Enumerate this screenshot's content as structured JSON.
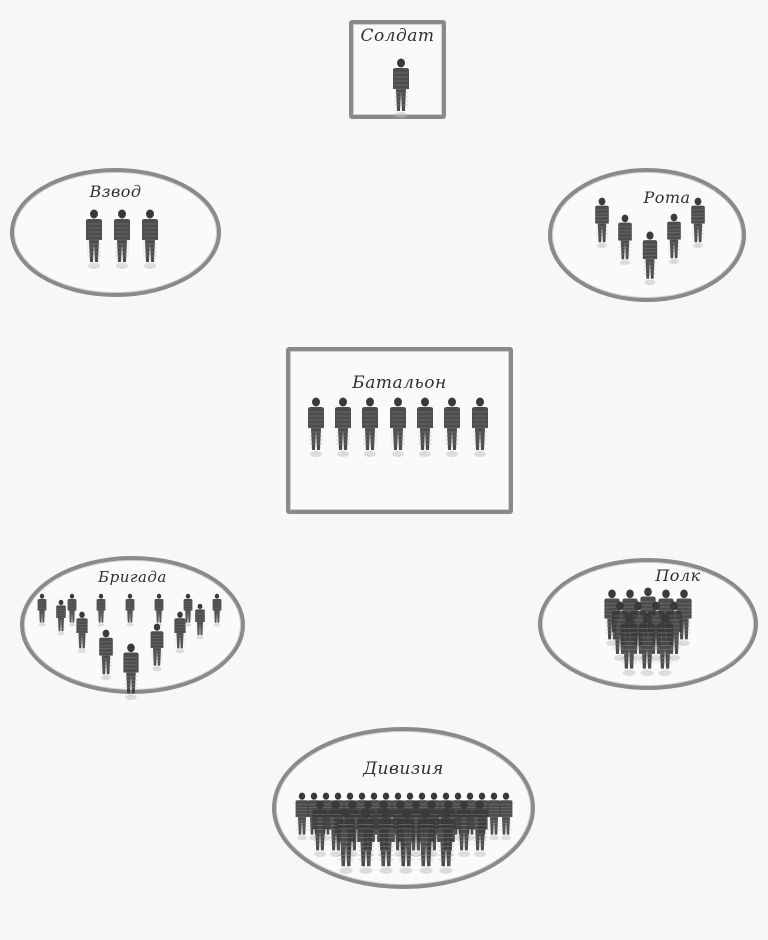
{
  "units": [
    {
      "id": "soldat",
      "label": "Солдат"
    },
    {
      "id": "vzvod",
      "label": "Взвод"
    },
    {
      "id": "rota",
      "label": "Рота"
    },
    {
      "id": "batalon",
      "label": "Батальон"
    },
    {
      "id": "brigada",
      "label": "Бригада"
    },
    {
      "id": "polk",
      "label": "Полк"
    },
    {
      "id": "diviziya",
      "label": "Дивизия"
    }
  ],
  "colors": {
    "border": "#8a8a8a",
    "figure": "#3a3a3a",
    "background": "#f7f7f7"
  }
}
